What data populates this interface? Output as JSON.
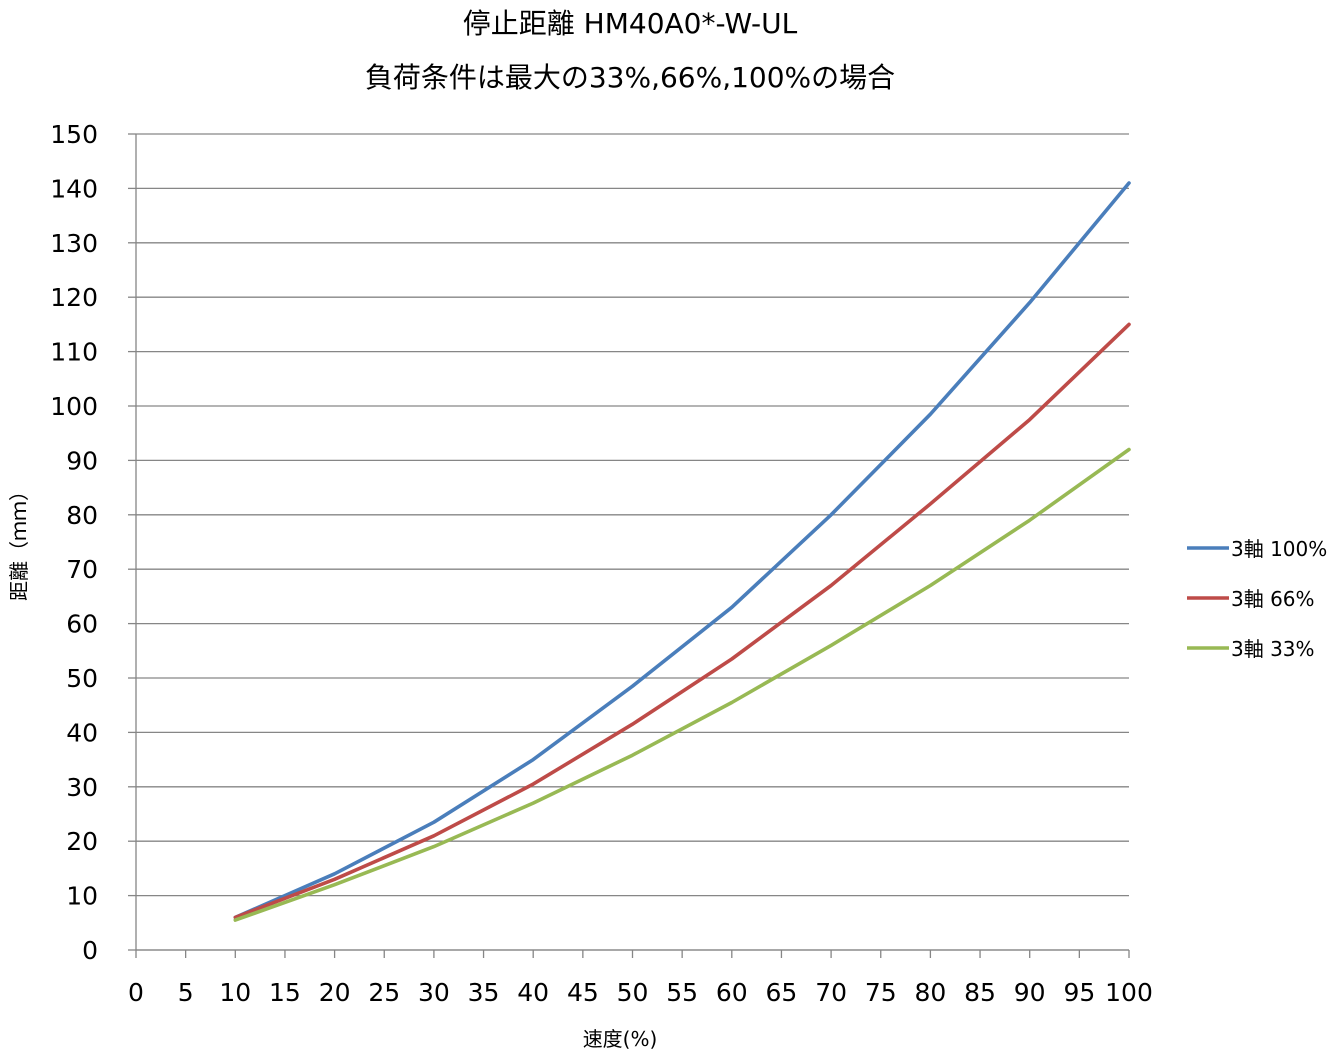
{
  "chart_data": {
    "type": "line",
    "title": "停止距離 HM40A0*-W-UL",
    "subtitle": "負荷条件は最大の33%,66%,100%の場合",
    "xlabel": "速度(%)",
    "ylabel": "距離（ｍｍ）",
    "xlim": [
      0,
      100
    ],
    "ylim": [
      0,
      150
    ],
    "x_ticks": [
      "0",
      "5",
      "10",
      "15",
      "20",
      "25",
      "30",
      "35",
      "40",
      "45",
      "50",
      "55",
      "60",
      "65",
      "70",
      "75",
      "80",
      "85",
      "90",
      "95",
      "100"
    ],
    "y_ticks": [
      "0",
      "10",
      "20",
      "30",
      "40",
      "50",
      "60",
      "70",
      "80",
      "90",
      "100",
      "110",
      "120",
      "130",
      "140",
      "150"
    ],
    "grid": "horizontal",
    "legend_position": "right",
    "x": [
      10,
      20,
      30,
      40,
      50,
      60,
      70,
      80,
      90,
      100
    ],
    "series": [
      {
        "name": "3軸 100%",
        "color": "#4a7ebb",
        "values": [
          6,
          14,
          23.5,
          35,
          48.5,
          63,
          80,
          98.5,
          119,
          141
        ]
      },
      {
        "name": "3軸 66%",
        "color": "#be4b48",
        "values": [
          6,
          13,
          21,
          30.5,
          41.5,
          53.5,
          67,
          82,
          97.5,
          115
        ]
      },
      {
        "name": "3軸 33%",
        "color": "#98b954",
        "values": [
          5.5,
          12,
          19,
          27,
          35.8,
          45.5,
          56,
          67,
          79,
          92
        ]
      }
    ]
  }
}
